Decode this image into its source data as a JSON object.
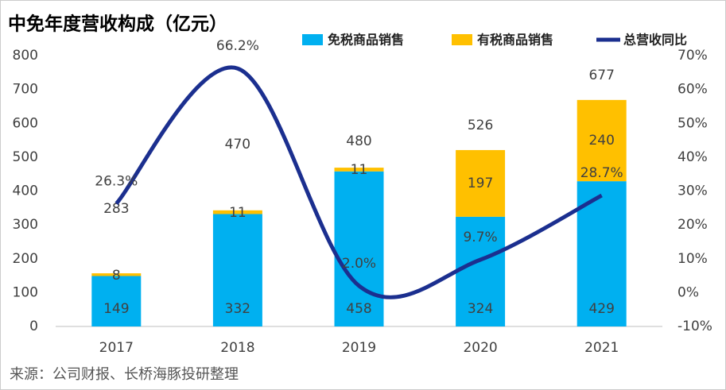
{
  "chart_data": {
    "type": "bar-line",
    "title": "中免年度营收构成（亿元）",
    "source": "来源：公司财报、长桥海豚投研整理",
    "categories": [
      "2017",
      "2018",
      "2019",
      "2020",
      "2021"
    ],
    "series": [
      {
        "name": "免税商品销售",
        "color": "#00b0f0",
        "type": "bar",
        "values": [
          149,
          332,
          458,
          324,
          429
        ]
      },
      {
        "name": "有税商品销售",
        "color": "#ffc000",
        "type": "bar",
        "values": [
          8,
          11,
          11,
          197,
          240
        ]
      },
      {
        "name": "总营收同比",
        "color": "#1b2f8f",
        "type": "line",
        "axis": "y2",
        "values": [
          26.3,
          66.2,
          2.0,
          9.7,
          28.7
        ],
        "value_labels": [
          "26.3%",
          "66.2%",
          "2.0%",
          "9.7%",
          "28.7%"
        ]
      }
    ],
    "totals": [
      283,
      470,
      480,
      526,
      677
    ],
    "ylim": [
      0,
      800
    ],
    "yticks": [
      0,
      100,
      200,
      300,
      400,
      500,
      600,
      700,
      800
    ],
    "y2lim": [
      -10,
      70
    ],
    "y2ticks": [
      {
        "value": -10,
        "label": "-10%"
      },
      {
        "value": 0,
        "label": "0%"
      },
      {
        "value": 10,
        "label": "10%"
      },
      {
        "value": 20,
        "label": "20%"
      },
      {
        "value": 30,
        "label": "30%"
      },
      {
        "value": 40,
        "label": "40%"
      },
      {
        "value": 50,
        "label": "50%"
      },
      {
        "value": 60,
        "label": "60%"
      },
      {
        "value": 70,
        "label": "70%"
      }
    ]
  }
}
